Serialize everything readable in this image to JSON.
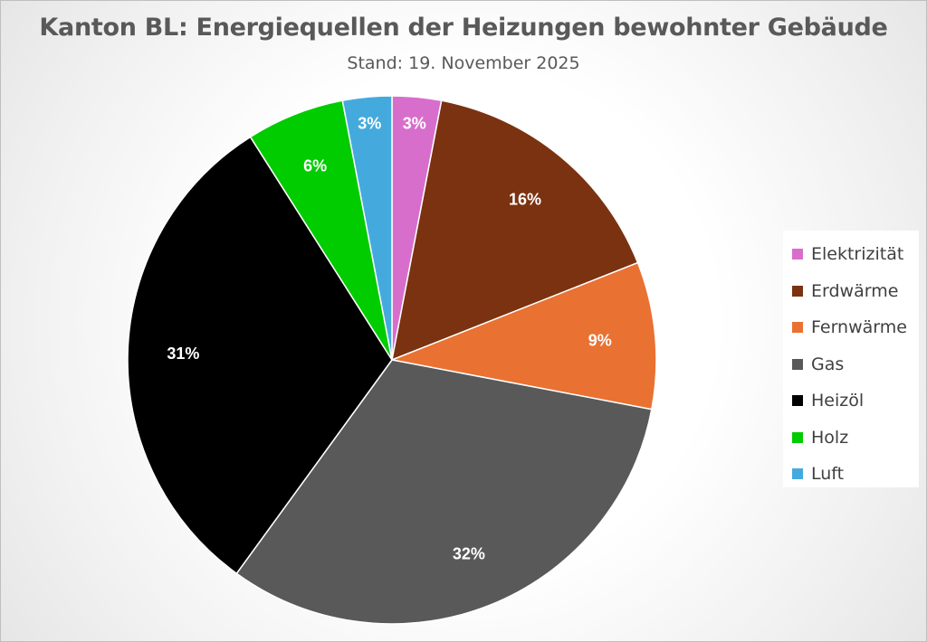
{
  "chart_data": {
    "type": "pie",
    "title": "Kanton BL: Energiequellen der Heizungen bewohnter Gebäude",
    "subtitle": "Stand: 19. November 2025",
    "legend_position": "right",
    "start_angle_deg": 0,
    "direction": "clockwise",
    "slices": [
      {
        "name": "Elektrizität",
        "value": 3,
        "label": "3%",
        "color": "#d86ecc"
      },
      {
        "name": "Erdwärme",
        "value": 16,
        "label": "16%",
        "color": "#7a3210"
      },
      {
        "name": "Fernwärme",
        "value": 9,
        "label": "9%",
        "color": "#e97132"
      },
      {
        "name": "Gas",
        "value": 32,
        "label": "32%",
        "color": "#595959"
      },
      {
        "name": "Heizöl",
        "value": 31,
        "label": "31%",
        "color": "#000000"
      },
      {
        "name": "Holz",
        "value": 6,
        "label": "6%",
        "color": "#00cc00"
      },
      {
        "name": "Luft",
        "value": 3,
        "label": "3%",
        "color": "#44aade"
      }
    ]
  }
}
